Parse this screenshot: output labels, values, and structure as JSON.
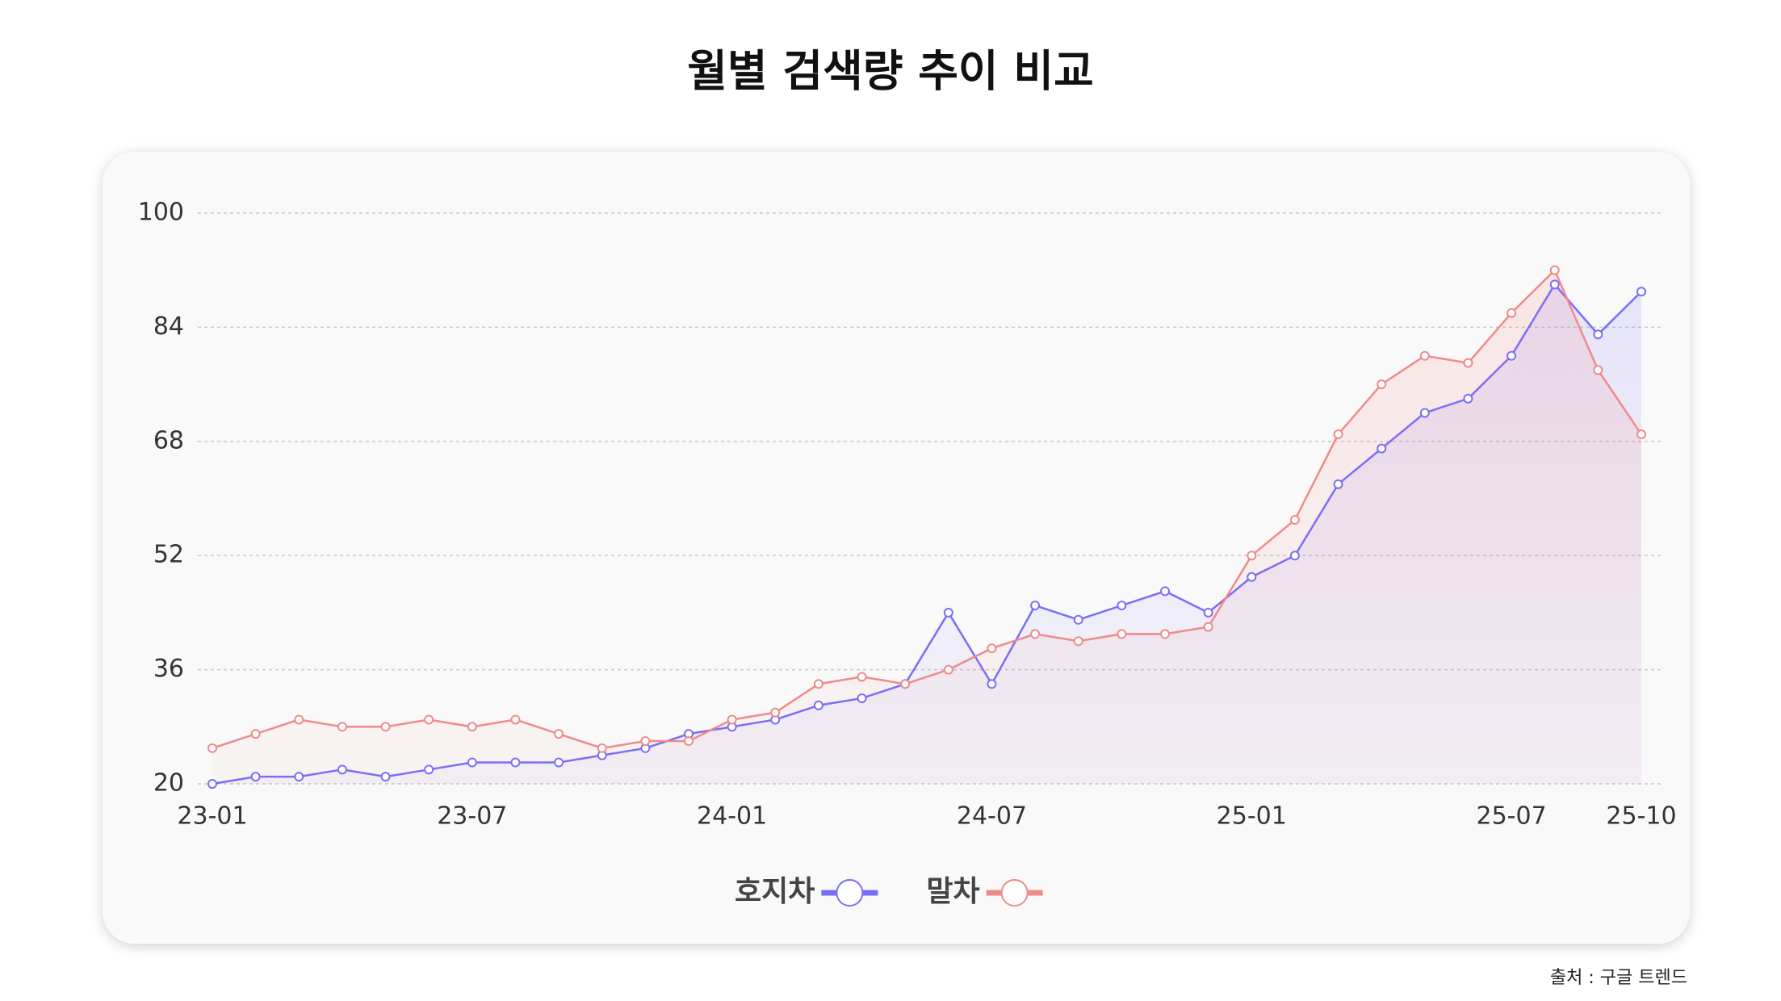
{
  "chart_data": {
    "type": "line",
    "title": "월별 검색량 추이 비교",
    "source": "출처 : 구글 트렌드",
    "categories": [
      "23-01",
      null,
      null,
      null,
      null,
      null,
      "23-07",
      null,
      null,
      null,
      null,
      null,
      "24-01",
      null,
      null,
      null,
      null,
      null,
      "24-07",
      null,
      null,
      null,
      null,
      null,
      "25-01",
      null,
      null,
      null,
      null,
      null,
      "25-07",
      null,
      null,
      "25-10"
    ],
    "series": [
      {
        "name": "호지차",
        "color": "#7b6ef6",
        "values": [
          20,
          21,
          21,
          22,
          21,
          22,
          23,
          23,
          23,
          24,
          25,
          27,
          28,
          29,
          31,
          32,
          34,
          44,
          34,
          45,
          43,
          45,
          47,
          44,
          49,
          52,
          62,
          67,
          72,
          74,
          80,
          90,
          83,
          89
        ]
      },
      {
        "name": "말차",
        "color": "#f08a8a",
        "values": [
          25,
          27,
          29,
          28,
          28,
          29,
          28,
          29,
          27,
          25,
          26,
          26,
          29,
          30,
          34,
          35,
          34,
          36,
          39,
          41,
          40,
          41,
          41,
          42,
          52,
          57,
          69,
          76,
          80,
          79,
          86,
          92,
          78,
          69
        ]
      }
    ],
    "ylim": [
      20,
      100
    ],
    "yticks": [
      20,
      36,
      52,
      68,
      84,
      100
    ],
    "grid": true,
    "legend": "bottom"
  }
}
